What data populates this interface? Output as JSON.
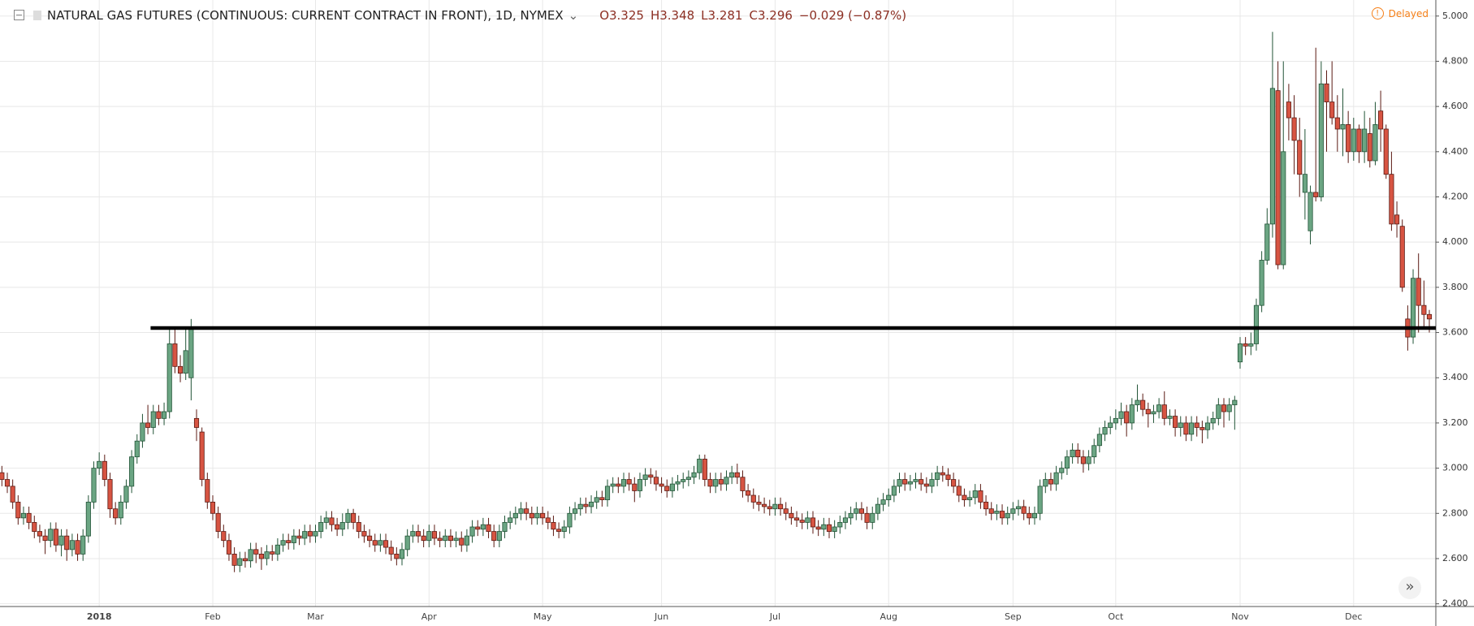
{
  "chart_data": {
    "type": "candlestick",
    "title": "NATURAL GAS FUTURES (CONTINUOUS: CURRENT CONTRACT IN FRONT), 1D, NYMEX",
    "legend_values": [
      "O3.325",
      "H3.348",
      "L3.281",
      "C3.296",
      "−0.029 (−0.87%)"
    ],
    "status": "Delayed",
    "up_color": "#6ba583",
    "down_color": "#d75442",
    "up_border": "#225437",
    "down_border": "#5b1a13",
    "grid": true,
    "xlim": [
      -0.35,
      265.2
    ],
    "xticks": [
      {
        "value": 18,
        "label": "2018"
      },
      {
        "value": 39,
        "label": "Feb"
      },
      {
        "value": 58,
        "label": "Mar"
      },
      {
        "value": 79,
        "label": "Apr"
      },
      {
        "value": 100,
        "label": "May"
      },
      {
        "value": 122,
        "label": "Jun"
      },
      {
        "value": 143,
        "label": "Jul"
      },
      {
        "value": 164,
        "label": "Aug"
      },
      {
        "value": 187,
        "label": "Sep"
      },
      {
        "value": 206,
        "label": "Oct"
      },
      {
        "value": 229,
        "label": "Nov"
      },
      {
        "value": 250,
        "label": "Dec"
      }
    ],
    "ylim": [
      2.388,
      5.071
    ],
    "yticks": [
      {
        "value": 2.4,
        "label": "2.400"
      },
      {
        "value": 2.6,
        "label": "2.600"
      },
      {
        "value": 2.8,
        "label": "2.800"
      },
      {
        "value": 3,
        "label": "3.000"
      },
      {
        "value": 3.2,
        "label": "3.200"
      },
      {
        "value": 3.4,
        "label": "3.400"
      },
      {
        "value": 3.6,
        "label": "3.600"
      },
      {
        "value": 3.8,
        "label": "3.800"
      },
      {
        "value": 4,
        "label": "4.000"
      },
      {
        "value": 4.2,
        "label": "4.200"
      },
      {
        "value": 4.4,
        "label": "4.400"
      },
      {
        "value": 4.6,
        "label": "4.600"
      },
      {
        "value": 4.8,
        "label": "4.800"
      },
      {
        "value": 5,
        "label": "5.000"
      }
    ],
    "hline": {
      "y": 3.62,
      "x_start": 27.5,
      "color": "#000000"
    },
    "open": [
      2.98,
      2.95,
      2.92,
      2.85,
      2.78,
      2.8,
      2.76,
      2.72,
      2.7,
      2.68,
      2.73,
      2.66,
      2.7,
      2.64,
      2.68,
      2.62,
      2.7,
      2.85,
      3.0,
      3.03,
      2.95,
      2.82,
      2.78,
      2.85,
      2.92,
      3.05,
      3.12,
      3.2,
      3.18,
      3.25,
      3.22,
      3.25,
      3.55,
      3.45,
      3.42,
      3.4,
      3.22,
      3.16,
      2.95,
      2.85,
      2.8,
      2.72,
      2.68,
      2.62,
      2.57,
      2.6,
      2.59,
      2.64,
      2.62,
      2.6,
      2.63,
      2.62,
      2.66,
      2.68,
      2.67,
      2.7,
      2.69,
      2.72,
      2.7,
      2.72,
      2.76,
      2.78,
      2.75,
      2.73,
      2.76,
      2.8,
      2.76,
      2.72,
      2.7,
      2.68,
      2.66,
      2.68,
      2.65,
      2.62,
      2.6,
      2.64,
      2.7,
      2.72,
      2.7,
      2.68,
      2.72,
      2.69,
      2.68,
      2.7,
      2.68,
      2.69,
      2.66,
      2.7,
      2.74,
      2.73,
      2.75,
      2.72,
      2.68,
      2.72,
      2.76,
      2.78,
      2.8,
      2.82,
      2.8,
      2.78,
      2.8,
      2.78,
      2.76,
      2.73,
      2.72,
      2.74,
      2.8,
      2.82,
      2.84,
      2.83,
      2.85,
      2.87,
      2.86,
      2.92,
      2.93,
      2.92,
      2.95,
      2.93,
      2.9,
      2.95,
      2.97,
      2.96,
      2.93,
      2.92,
      2.9,
      2.93,
      2.94,
      2.95,
      2.96,
      2.98,
      3.04,
      2.95,
      2.92,
      2.95,
      2.93,
      2.96,
      2.98,
      2.96,
      2.9,
      2.88,
      2.85,
      2.84,
      2.83,
      2.82,
      2.84,
      2.82,
      2.8,
      2.78,
      2.77,
      2.76,
      2.78,
      2.74,
      2.73,
      2.75,
      2.72,
      2.74,
      2.76,
      2.78,
      2.8,
      2.82,
      2.8,
      2.76,
      2.8,
      2.84,
      2.86,
      2.88,
      2.92,
      2.95,
      2.93,
      2.94,
      2.95,
      2.93,
      2.92,
      2.95,
      2.98,
      2.97,
      2.95,
      2.92,
      2.88,
      2.86,
      2.87,
      2.9,
      2.85,
      2.82,
      2.8,
      2.81,
      2.78,
      2.8,
      2.82,
      2.83,
      2.8,
      2.78,
      2.8,
      2.92,
      2.95,
      2.93,
      2.98,
      3.0,
      3.05,
      3.08,
      3.05,
      3.02,
      3.05,
      3.1,
      3.15,
      3.18,
      3.2,
      3.22,
      3.25,
      3.2,
      3.28,
      3.3,
      3.26,
      3.24,
      3.25,
      3.28,
      3.22,
      3.23,
      3.18,
      3.2,
      3.15,
      3.2,
      3.18,
      3.17,
      3.2,
      3.22,
      3.28,
      3.25,
      3.28,
      3.47,
      3.55,
      3.54,
      3.55,
      3.72,
      3.92,
      4.08,
      4.67,
      3.9,
      4.62,
      4.55,
      4.45,
      4.22,
      4.05,
      4.22,
      4.2,
      4.7,
      4.62,
      4.55,
      4.5,
      4.52,
      4.4,
      4.5,
      4.4,
      4.48,
      4.36,
      4.58,
      4.5,
      4.3,
      4.12,
      4.07,
      3.66,
      3.58,
      3.84,
      3.72,
      3.68
    ],
    "high": [
      3.01,
      2.98,
      2.95,
      2.88,
      2.83,
      2.83,
      2.79,
      2.75,
      2.73,
      2.76,
      2.76,
      2.73,
      2.73,
      2.71,
      2.71,
      2.73,
      2.88,
      3.03,
      3.07,
      3.06,
      2.98,
      2.85,
      2.88,
      2.95,
      3.08,
      3.15,
      3.24,
      3.28,
      3.28,
      3.28,
      3.29,
      3.62,
      3.62,
      3.5,
      3.62,
      3.66,
      3.26,
      3.18,
      2.98,
      2.88,
      2.83,
      2.75,
      2.71,
      2.65,
      2.63,
      2.63,
      2.67,
      2.67,
      2.65,
      2.66,
      2.66,
      2.69,
      2.71,
      2.71,
      2.73,
      2.73,
      2.75,
      2.75,
      2.75,
      2.79,
      2.81,
      2.81,
      2.78,
      2.8,
      2.82,
      2.82,
      2.79,
      2.75,
      2.73,
      2.71,
      2.71,
      2.71,
      2.68,
      2.65,
      2.67,
      2.73,
      2.75,
      2.75,
      2.73,
      2.75,
      2.75,
      2.72,
      2.73,
      2.73,
      2.72,
      2.72,
      2.73,
      2.77,
      2.77,
      2.78,
      2.78,
      2.75,
      2.75,
      2.79,
      2.81,
      2.83,
      2.85,
      2.85,
      2.83,
      2.83,
      2.83,
      2.81,
      2.79,
      2.76,
      2.77,
      2.83,
      2.85,
      2.87,
      2.87,
      2.88,
      2.9,
      2.9,
      2.95,
      2.96,
      2.96,
      2.98,
      2.98,
      2.96,
      2.98,
      3.0,
      3.0,
      2.99,
      2.96,
      2.95,
      2.96,
      2.97,
      2.98,
      2.99,
      3.01,
      3.06,
      3.06,
      2.98,
      2.98,
      2.98,
      2.99,
      3.01,
      3.02,
      2.99,
      2.93,
      2.91,
      2.88,
      2.87,
      2.86,
      2.87,
      2.87,
      2.85,
      2.83,
      2.81,
      2.8,
      2.81,
      2.81,
      2.77,
      2.78,
      2.78,
      2.77,
      2.79,
      2.81,
      2.83,
      2.85,
      2.85,
      2.83,
      2.83,
      2.87,
      2.89,
      2.91,
      2.95,
      2.98,
      2.98,
      2.97,
      2.98,
      2.98,
      2.96,
      2.98,
      3.01,
      3.01,
      3.0,
      2.98,
      2.95,
      2.91,
      2.9,
      2.93,
      2.93,
      2.88,
      2.85,
      2.84,
      2.84,
      2.83,
      2.85,
      2.86,
      2.86,
      2.83,
      2.83,
      2.95,
      2.98,
      2.98,
      3.01,
      3.03,
      3.08,
      3.11,
      3.11,
      3.08,
      3.08,
      3.13,
      3.18,
      3.21,
      3.23,
      3.26,
      3.29,
      3.28,
      3.31,
      3.37,
      3.33,
      3.29,
      3.28,
      3.31,
      3.34,
      3.26,
      3.26,
      3.23,
      3.23,
      3.23,
      3.23,
      3.21,
      3.23,
      3.25,
      3.31,
      3.31,
      3.31,
      3.32,
      3.58,
      3.58,
      3.6,
      3.75,
      3.96,
      4.15,
      4.93,
      4.8,
      4.8,
      4.7,
      4.65,
      4.55,
      4.5,
      4.25,
      4.86,
      4.8,
      4.76,
      4.8,
      4.65,
      4.68,
      4.58,
      4.55,
      4.52,
      4.58,
      4.55,
      4.62,
      4.67,
      4.52,
      4.4,
      4.18,
      4.1,
      3.72,
      3.88,
      3.95,
      3.83,
      3.7
    ],
    "low": [
      2.92,
      2.89,
      2.82,
      2.75,
      2.75,
      2.73,
      2.69,
      2.67,
      2.62,
      2.65,
      2.63,
      2.61,
      2.59,
      2.61,
      2.59,
      2.59,
      2.67,
      2.82,
      2.97,
      2.92,
      2.78,
      2.75,
      2.75,
      2.82,
      2.89,
      3.02,
      3.09,
      3.15,
      3.15,
      3.19,
      3.19,
      3.22,
      3.42,
      3.38,
      3.39,
      3.3,
      3.12,
      2.92,
      2.82,
      2.77,
      2.69,
      2.65,
      2.59,
      2.54,
      2.54,
      2.56,
      2.56,
      2.58,
      2.55,
      2.57,
      2.59,
      2.59,
      2.63,
      2.64,
      2.64,
      2.66,
      2.66,
      2.67,
      2.67,
      2.69,
      2.73,
      2.72,
      2.7,
      2.7,
      2.73,
      2.73,
      2.69,
      2.67,
      2.65,
      2.63,
      2.63,
      2.62,
      2.59,
      2.57,
      2.57,
      2.61,
      2.67,
      2.67,
      2.65,
      2.65,
      2.66,
      2.65,
      2.65,
      2.65,
      2.65,
      2.63,
      2.63,
      2.67,
      2.7,
      2.7,
      2.69,
      2.65,
      2.65,
      2.69,
      2.73,
      2.75,
      2.77,
      2.77,
      2.75,
      2.75,
      2.75,
      2.73,
      2.7,
      2.69,
      2.69,
      2.71,
      2.77,
      2.79,
      2.8,
      2.8,
      2.82,
      2.83,
      2.83,
      2.89,
      2.89,
      2.89,
      2.9,
      2.85,
      2.87,
      2.92,
      2.93,
      2.9,
      2.89,
      2.87,
      2.87,
      2.9,
      2.91,
      2.92,
      2.93,
      2.95,
      2.92,
      2.89,
      2.89,
      2.9,
      2.9,
      2.93,
      2.93,
      2.87,
      2.85,
      2.82,
      2.81,
      2.8,
      2.79,
      2.79,
      2.79,
      2.77,
      2.75,
      2.74,
      2.73,
      2.73,
      2.71,
      2.7,
      2.7,
      2.69,
      2.69,
      2.71,
      2.73,
      2.75,
      2.77,
      2.77,
      2.73,
      2.73,
      2.77,
      2.81,
      2.83,
      2.85,
      2.89,
      2.9,
      2.9,
      2.91,
      2.9,
      2.89,
      2.89,
      2.92,
      2.94,
      2.92,
      2.89,
      2.85,
      2.83,
      2.83,
      2.84,
      2.82,
      2.79,
      2.77,
      2.77,
      2.75,
      2.75,
      2.77,
      2.79,
      2.77,
      2.75,
      2.75,
      2.77,
      2.89,
      2.9,
      2.9,
      2.95,
      2.97,
      3.02,
      3.02,
      2.98,
      2.99,
      3.02,
      3.07,
      3.12,
      3.15,
      3.17,
      3.19,
      3.14,
      3.17,
      3.25,
      3.23,
      3.18,
      3.2,
      3.22,
      3.19,
      3.19,
      3.14,
      3.14,
      3.12,
      3.12,
      3.14,
      3.11,
      3.13,
      3.17,
      3.19,
      3.18,
      3.21,
      3.17,
      3.44,
      3.5,
      3.5,
      3.52,
      3.69,
      3.9,
      4.02,
      3.88,
      3.88,
      4.45,
      4.3,
      4.2,
      4.1,
      3.99,
      4.18,
      4.18,
      4.4,
      4.52,
      4.4,
      4.38,
      4.35,
      4.36,
      4.35,
      4.35,
      4.33,
      4.34,
      4.4,
      4.28,
      4.05,
      4.02,
      3.78,
      3.52,
      3.55,
      3.6,
      3.62,
      3.6
    ],
    "close": [
      2.95,
      2.92,
      2.85,
      2.78,
      2.8,
      2.76,
      2.72,
      2.7,
      2.68,
      2.73,
      2.66,
      2.7,
      2.64,
      2.68,
      2.62,
      2.7,
      2.85,
      3.0,
      3.03,
      2.95,
      2.82,
      2.78,
      2.85,
      2.92,
      3.05,
      3.12,
      3.2,
      3.18,
      3.25,
      3.22,
      3.25,
      3.55,
      3.45,
      3.42,
      3.52,
      3.62,
      3.18,
      2.95,
      2.85,
      2.8,
      2.72,
      2.68,
      2.62,
      2.57,
      2.6,
      2.59,
      2.64,
      2.62,
      2.6,
      2.63,
      2.62,
      2.66,
      2.68,
      2.67,
      2.7,
      2.69,
      2.72,
      2.7,
      2.72,
      2.76,
      2.78,
      2.75,
      2.73,
      2.76,
      2.8,
      2.76,
      2.72,
      2.7,
      2.68,
      2.66,
      2.68,
      2.65,
      2.62,
      2.6,
      2.64,
      2.7,
      2.72,
      2.7,
      2.68,
      2.72,
      2.69,
      2.68,
      2.7,
      2.68,
      2.69,
      2.66,
      2.7,
      2.74,
      2.73,
      2.75,
      2.72,
      2.68,
      2.72,
      2.76,
      2.78,
      2.8,
      2.82,
      2.8,
      2.78,
      2.8,
      2.78,
      2.76,
      2.73,
      2.72,
      2.74,
      2.8,
      2.82,
      2.84,
      2.83,
      2.85,
      2.87,
      2.86,
      2.92,
      2.93,
      2.92,
      2.95,
      2.93,
      2.9,
      2.95,
      2.97,
      2.96,
      2.93,
      2.92,
      2.9,
      2.93,
      2.94,
      2.95,
      2.96,
      2.98,
      3.04,
      2.95,
      2.92,
      2.95,
      2.93,
      2.96,
      2.98,
      2.96,
      2.9,
      2.88,
      2.85,
      2.84,
      2.83,
      2.82,
      2.84,
      2.82,
      2.8,
      2.78,
      2.77,
      2.76,
      2.78,
      2.74,
      2.73,
      2.75,
      2.72,
      2.74,
      2.76,
      2.78,
      2.8,
      2.82,
      2.8,
      2.76,
      2.8,
      2.84,
      2.86,
      2.88,
      2.92,
      2.95,
      2.93,
      2.94,
      2.95,
      2.93,
      2.92,
      2.95,
      2.98,
      2.97,
      2.95,
      2.92,
      2.88,
      2.86,
      2.87,
      2.9,
      2.85,
      2.82,
      2.8,
      2.81,
      2.78,
      2.8,
      2.82,
      2.83,
      2.8,
      2.78,
      2.8,
      2.92,
      2.95,
      2.93,
      2.98,
      3.0,
      3.05,
      3.08,
      3.05,
      3.02,
      3.05,
      3.1,
      3.15,
      3.18,
      3.2,
      3.22,
      3.25,
      3.2,
      3.28,
      3.3,
      3.26,
      3.24,
      3.25,
      3.28,
      3.22,
      3.23,
      3.18,
      3.2,
      3.15,
      3.2,
      3.18,
      3.17,
      3.2,
      3.22,
      3.28,
      3.25,
      3.28,
      3.3,
      3.55,
      3.54,
      3.55,
      3.72,
      3.92,
      4.08,
      4.68,
      3.9,
      4.4,
      4.55,
      4.45,
      4.3,
      4.3,
      4.22,
      4.2,
      4.7,
      4.62,
      4.55,
      4.5,
      4.52,
      4.4,
      4.5,
      4.4,
      4.5,
      4.36,
      4.52,
      4.5,
      4.3,
      4.08,
      4.08,
      3.8,
      3.58,
      3.84,
      3.72,
      3.68,
      3.66
    ]
  }
}
